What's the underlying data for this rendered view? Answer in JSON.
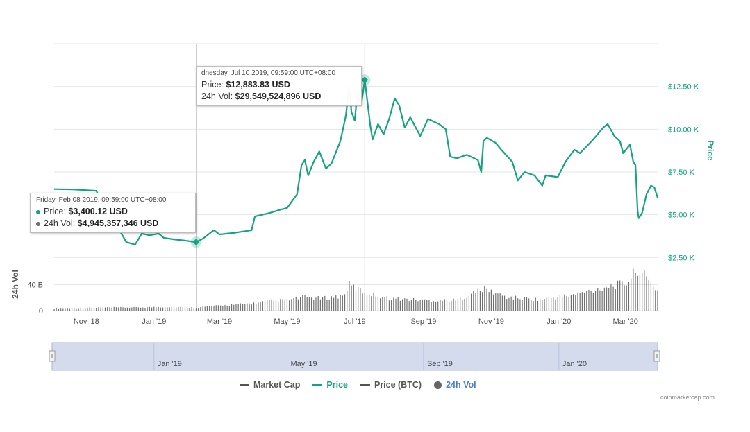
{
  "colors": {
    "price": "#16a37f",
    "volume": "#6f6f6f",
    "market_cap": "#555555",
    "price_btc": "#555555",
    "navigator_fill": "#d3dbec",
    "navigator_border": "#aab5d1",
    "vol_legend": "#4b7cc9"
  },
  "price_axis": {
    "title": "Price",
    "ticks": [
      "$2.50 K",
      "$5.00 K",
      "$7.50 K",
      "$10.00 K",
      "$12.50 K"
    ],
    "tick_values": [
      2500,
      5000,
      7500,
      10000,
      12500
    ]
  },
  "volume_axis": {
    "title": "24h Vol",
    "ticks": [
      "0",
      "40 B"
    ],
    "tick_values": [
      0,
      40
    ]
  },
  "x_axis": {
    "ticks": [
      "Nov '18",
      "Jan '19",
      "Mar '19",
      "May '19",
      "Jul '19",
      "Sep '19",
      "Nov '19",
      "Jan '20",
      "Mar '20"
    ],
    "tick_dates": [
      "2018-11-01",
      "2019-01-01",
      "2019-03-01",
      "2019-05-01",
      "2019-07-01",
      "2019-09-01",
      "2019-11-01",
      "2020-01-01",
      "2020-03-01"
    ]
  },
  "navigator": {
    "ticks": [
      "Jan '19",
      "May '19",
      "Sep '19",
      "Jan '20"
    ],
    "tick_dates": [
      "2019-01-01",
      "2019-05-01",
      "2019-09-01",
      "2020-01-01"
    ]
  },
  "tooltips": [
    {
      "header": "Friday, Feb 08 2019, 09:59:00 UTC+08:00",
      "price_label": "Price:",
      "price_value": "$3,400.12 USD",
      "vol_label": "24h Vol:",
      "vol_value": "$4,945,357,346 USD",
      "date": "2019-02-08",
      "price": 3400.12
    },
    {
      "header": "dnesday, Jul 10 2019, 09:59:00 UTC+08:00",
      "price_label": "Price:",
      "price_value": "$12,883.83 USD",
      "vol_label": "24h Vol:",
      "vol_value": "$29,549,524,896 USD",
      "date": "2019-07-10",
      "price": 12883.83
    }
  ],
  "legend": [
    {
      "label": "Market Cap",
      "kind": "line",
      "color": "#555555"
    },
    {
      "label": "Price",
      "kind": "line",
      "color": "#16a37f"
    },
    {
      "label": "Price (BTC)",
      "kind": "line",
      "color": "#555555"
    },
    {
      "label": "24h Vol",
      "kind": "circle",
      "color": "#666666"
    }
  ],
  "credit": "coinmarketcap.com",
  "chart_data": {
    "type": "line",
    "title": "",
    "x_range": [
      "2018-10-03",
      "2020-03-30"
    ],
    "price_range": [
      0,
      15000
    ],
    "volume_range_billions": [
      0,
      80
    ],
    "series": [
      {
        "name": "Price",
        "points": [
          [
            "2018-10-03",
            6500
          ],
          [
            "2018-10-20",
            6480
          ],
          [
            "2018-11-10",
            6400
          ],
          [
            "2018-11-16",
            5600
          ],
          [
            "2018-11-20",
            4600
          ],
          [
            "2018-11-25",
            4000
          ],
          [
            "2018-12-01",
            4100
          ],
          [
            "2018-12-07",
            3400
          ],
          [
            "2018-12-15",
            3250
          ],
          [
            "2018-12-21",
            3900
          ],
          [
            "2018-12-28",
            3800
          ],
          [
            "2019-01-05",
            3900
          ],
          [
            "2019-01-10",
            3650
          ],
          [
            "2019-01-20",
            3550
          ],
          [
            "2019-01-28",
            3500
          ],
          [
            "2019-02-08",
            3400.12
          ],
          [
            "2019-02-14",
            3600
          ],
          [
            "2019-02-24",
            4100
          ],
          [
            "2019-03-01",
            3850
          ],
          [
            "2019-03-15",
            3950
          ],
          [
            "2019-03-30",
            4100
          ],
          [
            "2019-04-02",
            4900
          ],
          [
            "2019-04-15",
            5100
          ],
          [
            "2019-04-25",
            5300
          ],
          [
            "2019-05-01",
            5400
          ],
          [
            "2019-05-10",
            6200
          ],
          [
            "2019-05-14",
            7900
          ],
          [
            "2019-05-17",
            8200
          ],
          [
            "2019-05-20",
            7300
          ],
          [
            "2019-05-25",
            8100
          ],
          [
            "2019-05-30",
            8700
          ],
          [
            "2019-06-05",
            7700
          ],
          [
            "2019-06-10",
            8000
          ],
          [
            "2019-06-18",
            9300
          ],
          [
            "2019-06-23",
            10800
          ],
          [
            "2019-06-26",
            12500
          ],
          [
            "2019-06-28",
            11000
          ],
          [
            "2019-07-01",
            10500
          ],
          [
            "2019-07-03",
            11900
          ],
          [
            "2019-07-07",
            11500
          ],
          [
            "2019-07-10",
            12883.83
          ],
          [
            "2019-07-12",
            11800
          ],
          [
            "2019-07-15",
            10200
          ],
          [
            "2019-07-17",
            9400
          ],
          [
            "2019-07-22",
            10300
          ],
          [
            "2019-07-27",
            9700
          ],
          [
            "2019-08-01",
            10600
          ],
          [
            "2019-08-06",
            11800
          ],
          [
            "2019-08-10",
            11400
          ],
          [
            "2019-08-15",
            10100
          ],
          [
            "2019-08-20",
            10700
          ],
          [
            "2019-08-29",
            9600
          ],
          [
            "2019-09-05",
            10600
          ],
          [
            "2019-09-15",
            10300
          ],
          [
            "2019-09-21",
            10000
          ],
          [
            "2019-09-25",
            8400
          ],
          [
            "2019-10-01",
            8300
          ],
          [
            "2019-10-10",
            8500
          ],
          [
            "2019-10-20",
            8200
          ],
          [
            "2019-10-23",
            7500
          ],
          [
            "2019-10-25",
            9300
          ],
          [
            "2019-10-28",
            9500
          ],
          [
            "2019-11-05",
            9200
          ],
          [
            "2019-11-10",
            8800
          ],
          [
            "2019-11-20",
            8100
          ],
          [
            "2019-11-25",
            7000
          ],
          [
            "2019-12-01",
            7500
          ],
          [
            "2019-12-10",
            7300
          ],
          [
            "2019-12-17",
            6700
          ],
          [
            "2019-12-20",
            7300
          ],
          [
            "2019-12-31",
            7200
          ],
          [
            "2020-01-07",
            8100
          ],
          [
            "2020-01-15",
            8800
          ],
          [
            "2020-01-20",
            8600
          ],
          [
            "2020-02-01",
            9400
          ],
          [
            "2020-02-10",
            10100
          ],
          [
            "2020-02-14",
            10300
          ],
          [
            "2020-02-20",
            9600
          ],
          [
            "2020-02-25",
            9300
          ],
          [
            "2020-02-28",
            8600
          ],
          [
            "2020-03-05",
            9100
          ],
          [
            "2020-03-08",
            8100
          ],
          [
            "2020-03-10",
            7900
          ],
          [
            "2020-03-12",
            5200
          ],
          [
            "2020-03-13",
            4800
          ],
          [
            "2020-03-16",
            5100
          ],
          [
            "2020-03-20",
            6200
          ],
          [
            "2020-03-24",
            6700
          ],
          [
            "2020-03-27",
            6600
          ],
          [
            "2020-03-30",
            6000
          ]
        ]
      },
      {
        "name": "24h Vol",
        "unit": "billions USD",
        "points": [
          [
            "2018-10-03",
            4
          ],
          [
            "2018-11-15",
            5
          ],
          [
            "2018-12-15",
            5
          ],
          [
            "2019-01-15",
            6
          ],
          [
            "2019-02-08",
            4.95
          ],
          [
            "2019-03-01",
            8
          ],
          [
            "2019-04-01",
            12
          ],
          [
            "2019-04-15",
            16
          ],
          [
            "2019-05-01",
            17
          ],
          [
            "2019-05-15",
            22
          ],
          [
            "2019-06-01",
            20
          ],
          [
            "2019-06-20",
            24
          ],
          [
            "2019-06-26",
            42
          ],
          [
            "2019-07-10",
            29.55
          ],
          [
            "2019-08-01",
            20
          ],
          [
            "2019-09-01",
            17
          ],
          [
            "2019-10-01",
            17
          ],
          [
            "2019-10-25",
            36
          ],
          [
            "2019-11-15",
            22
          ],
          [
            "2019-12-15",
            18
          ],
          [
            "2020-01-15",
            26
          ],
          [
            "2020-02-15",
            40
          ],
          [
            "2020-03-01",
            44
          ],
          [
            "2020-03-13",
            70
          ],
          [
            "2020-03-20",
            52
          ],
          [
            "2020-03-30",
            33
          ]
        ]
      }
    ],
    "grid": true
  }
}
